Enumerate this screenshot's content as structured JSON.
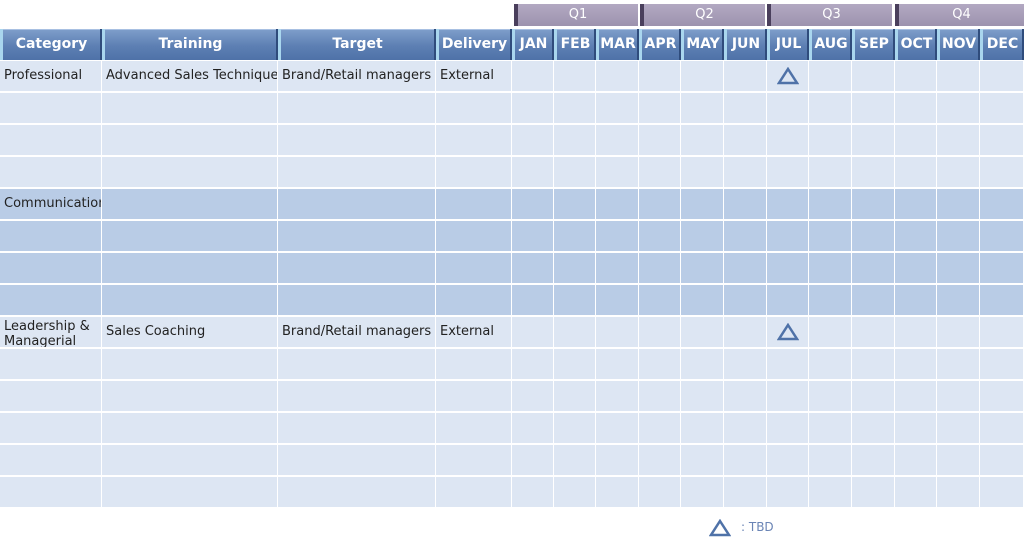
{
  "quarters": [
    "Q1",
    "Q2",
    "Q3",
    "Q4"
  ],
  "headers": {
    "category": "Category",
    "training": "Training",
    "target": "Target",
    "delivery": "Delivery",
    "months": [
      "JAN",
      "FEB",
      "MAR",
      "APR",
      "MAY",
      "JUN",
      "JUL",
      "AUG",
      "SEP",
      "OCT",
      "NOV",
      "DEC"
    ]
  },
  "sections": [
    {
      "category": "Professional",
      "shade": "light",
      "rows": [
        {
          "training": "Advanced Sales Technique",
          "target": "Brand/Retail managers",
          "delivery": "External",
          "marks": [
            "JUL"
          ]
        },
        {
          "training": "",
          "target": "",
          "delivery": "",
          "marks": []
        },
        {
          "training": "",
          "target": "",
          "delivery": "",
          "marks": []
        },
        {
          "training": "",
          "target": "",
          "delivery": "",
          "marks": []
        }
      ]
    },
    {
      "category": "Communication",
      "shade": "dark",
      "rows": [
        {
          "training": "",
          "target": "",
          "delivery": "",
          "marks": []
        },
        {
          "training": "",
          "target": "",
          "delivery": "",
          "marks": []
        },
        {
          "training": "",
          "target": "",
          "delivery": "",
          "marks": []
        },
        {
          "training": "",
          "target": "",
          "delivery": "",
          "marks": []
        }
      ]
    },
    {
      "category": "Leadership & Managerial",
      "shade": "light",
      "rows": [
        {
          "training": "Sales Coaching",
          "target": "Brand/Retail managers",
          "delivery": "External",
          "marks": [
            "JUL"
          ]
        },
        {
          "training": "",
          "target": "",
          "delivery": "",
          "marks": []
        },
        {
          "training": "",
          "target": "",
          "delivery": "",
          "marks": []
        },
        {
          "training": "",
          "target": "",
          "delivery": "",
          "marks": []
        },
        {
          "training": "",
          "target": "",
          "delivery": "",
          "marks": []
        },
        {
          "training": "",
          "target": "",
          "delivery": "",
          "marks": []
        }
      ]
    }
  ],
  "legend": {
    "symbol": "triangle-icon",
    "label": ": TBD"
  },
  "colors": {
    "triangle": "#4f72a8",
    "header": "#5d7fb3",
    "row_light": "#dde6f3",
    "row_dark": "#b9cce6"
  }
}
